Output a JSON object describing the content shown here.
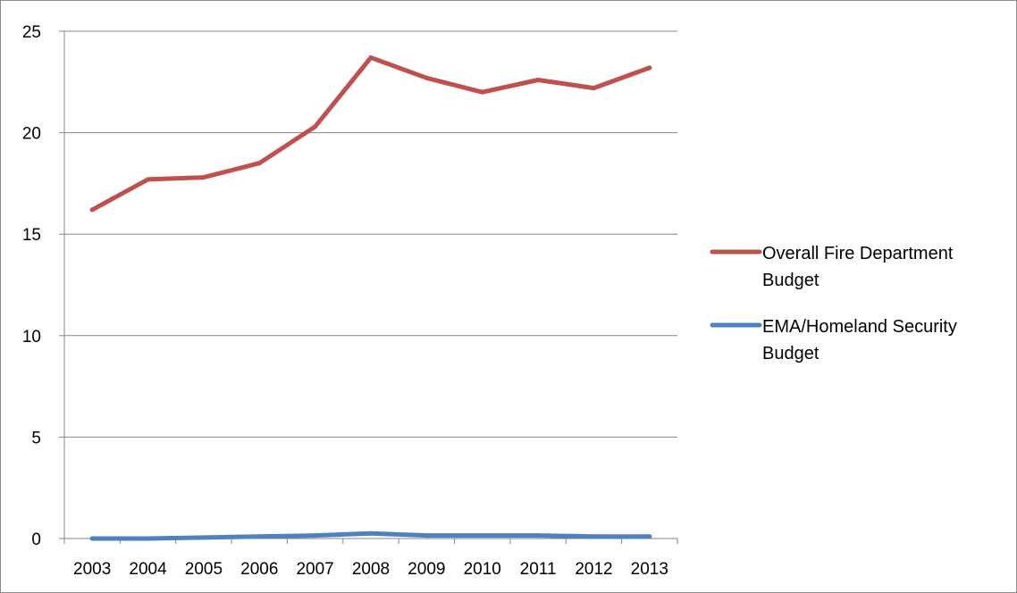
{
  "chart_data": {
    "type": "line",
    "x": [
      "2003",
      "2004",
      "2005",
      "2006",
      "2007",
      "2008",
      "2009",
      "2010",
      "2011",
      "2012",
      "2013"
    ],
    "ylim": [
      0,
      25
    ],
    "yticks": [
      "0",
      "5",
      "10",
      "15",
      "20",
      "25"
    ],
    "grid": true,
    "legend_position": "right",
    "series": [
      {
        "name": "Overall Fire Department Budget",
        "legend_lines": [
          "Overall Fire Department",
          "Budget"
        ],
        "color": "#c0504d",
        "values": [
          16.2,
          17.7,
          17.8,
          18.5,
          20.3,
          23.7,
          22.7,
          22.0,
          22.6,
          22.2,
          23.2
        ]
      },
      {
        "name": "EMA/Homeland Security Budget",
        "legend_lines": [
          "EMA/Homeland Security",
          "Budget"
        ],
        "color": "#4f81bd",
        "values": [
          0.0,
          0.0,
          0.05,
          0.1,
          0.15,
          0.25,
          0.15,
          0.15,
          0.15,
          0.1,
          0.1
        ]
      }
    ]
  }
}
